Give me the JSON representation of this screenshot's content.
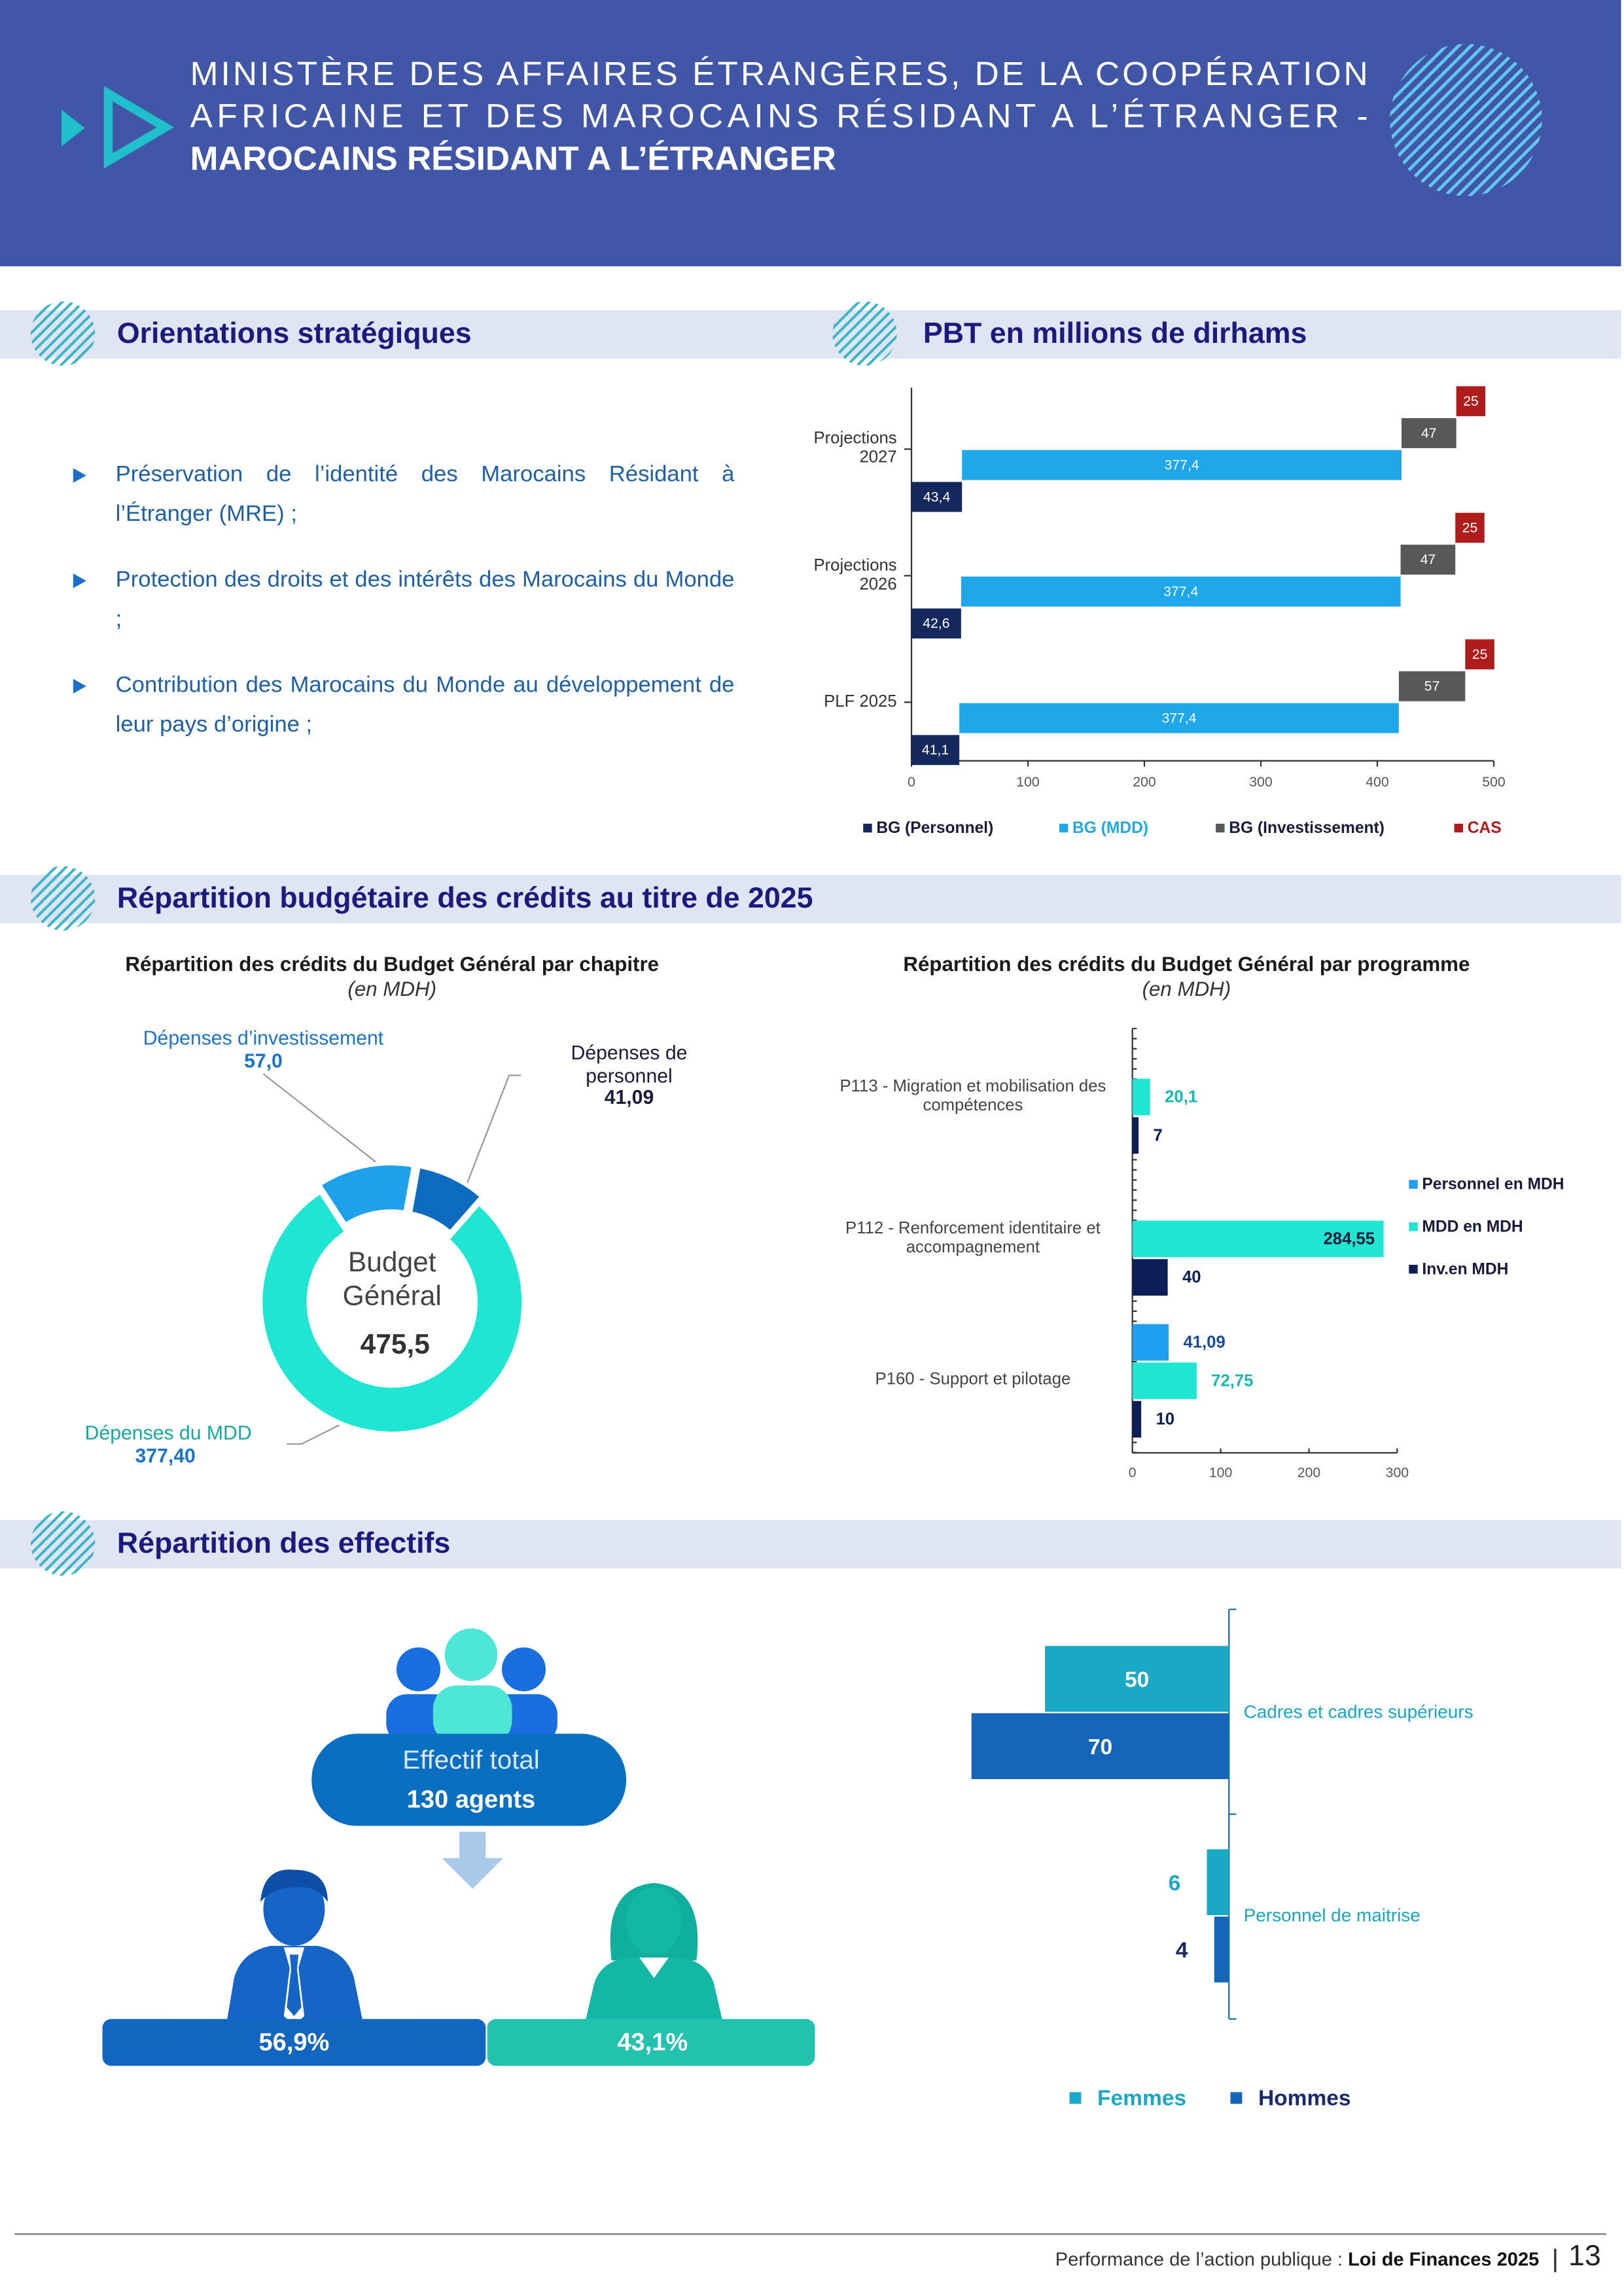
{
  "header": {
    "title_lines": [
      "MINISTÈRE DES AFFAIRES ÉTRANGÈRES, DE LA COOPÉRATION",
      "AFRICAINE ET DES MAROCAINS RÉSIDANT A L’ÉTRANGER -",
      "MAROCAINS RÉSIDANT A L’ÉTRANGER"
    ]
  },
  "sections": [
    "Orientations stratégiques",
    "PBT en millions de dirhams",
    "Répartition budgétaire des crédits au titre de 2025",
    "Répartition des effectifs"
  ],
  "orientations": {
    "items": [
      "Préservation de l’identité des Marocains Résidant à l’Étranger (MRE) ;",
      "Protection des droits et des intérêts des Marocains du Monde ;",
      "Contribution des Marocains du Monde au développement de leur pays d’origine ;"
    ]
  },
  "chart_data": [
    {
      "type": "bar",
      "orientation": "horizontal",
      "stacked": true,
      "categories": [
        "Projections 2027",
        "Projections 2026",
        "PLF 2025"
      ],
      "series": [
        {
          "name": "BG (Personnel)",
          "color": "#14285e",
          "values": [
            43.4,
            42.6,
            41.1
          ],
          "value_labels": [
            "43,4",
            "42,6",
            "41,1"
          ]
        },
        {
          "name": "BG (MDD)",
          "color": "#1ea8ea",
          "values": [
            377.4,
            377.4,
            377.4
          ],
          "value_labels": [
            "377,4",
            "377,4",
            "377,4"
          ]
        },
        {
          "name": "BG (Investissement)",
          "color": "#585858",
          "values": [
            47,
            47,
            57
          ]
        },
        {
          "name": "CAS",
          "color": "#b01c1c",
          "values": [
            25,
            25,
            25
          ]
        }
      ],
      "xlim": [
        0,
        500
      ],
      "xticks": [
        0,
        100,
        200,
        300,
        400,
        500
      ],
      "legend": "bottom"
    },
    {
      "type": "donut",
      "title": "Répartition des crédits du Budget Général par chapitre",
      "subtitle": "(en MDH)",
      "categories": [
        "Dépenses d’investissement",
        "Dépenses de personnel",
        "Dépenses du MDD"
      ],
      "values": [
        57.0,
        41.09,
        377.4
      ],
      "value_labels": [
        "57,0",
        "41,09",
        "377,40"
      ],
      "colors": [
        "#1ea0ea",
        "#0d6cbf",
        "#1ee6d2"
      ],
      "center_label": "Budget Général",
      "total": 475.5,
      "total_label": "475,5"
    },
    {
      "type": "bar",
      "orientation": "horizontal",
      "title": "Répartition des crédits du Budget Général par programme",
      "subtitle": "(en MDH)",
      "categories": [
        "P113 - Migration et mobilisation des compétences",
        "P112 - Renforcement identitaire et accompagnement",
        "P160 - Support et pilotage"
      ],
      "series": [
        {
          "name": "Personnel en MDH",
          "color": "#1e9ff0",
          "values": [
            null,
            null,
            41.09
          ],
          "value_labels": [
            null,
            null,
            "41,09"
          ]
        },
        {
          "name": "MDD en MDH",
          "color": "#1ee6d2",
          "values": [
            20.1,
            284.55,
            72.75
          ],
          "value_labels": [
            "20,1",
            "284,55",
            "72,75"
          ]
        },
        {
          "name": "Inv.en MDH",
          "color": "#0d1d55",
          "values": [
            7,
            40,
            10
          ]
        }
      ],
      "xlim": [
        0,
        300
      ],
      "xticks": [
        0,
        100,
        200,
        300
      ],
      "legend": "right"
    },
    {
      "type": "bar",
      "orientation": "horizontal",
      "direction": "left",
      "categories": [
        "Cadres et cadres supérieurs",
        "Personnel de maitrise"
      ],
      "series": [
        {
          "name": "Femmes",
          "color": "#19a9c6",
          "values": [
            50,
            6
          ]
        },
        {
          "name": "Hommes",
          "color": "#1565b9",
          "values": [
            70,
            4
          ]
        }
      ],
      "legend": "bottom"
    }
  ],
  "effectifs": {
    "label": "Effectif total",
    "total": "130 agents",
    "hommes": "56,9%",
    "femmes": "43,1%"
  },
  "footer": {
    "text": "Performance de l’action publique : ",
    "highlight": "Loi de Finances 2025",
    "page": 13
  }
}
